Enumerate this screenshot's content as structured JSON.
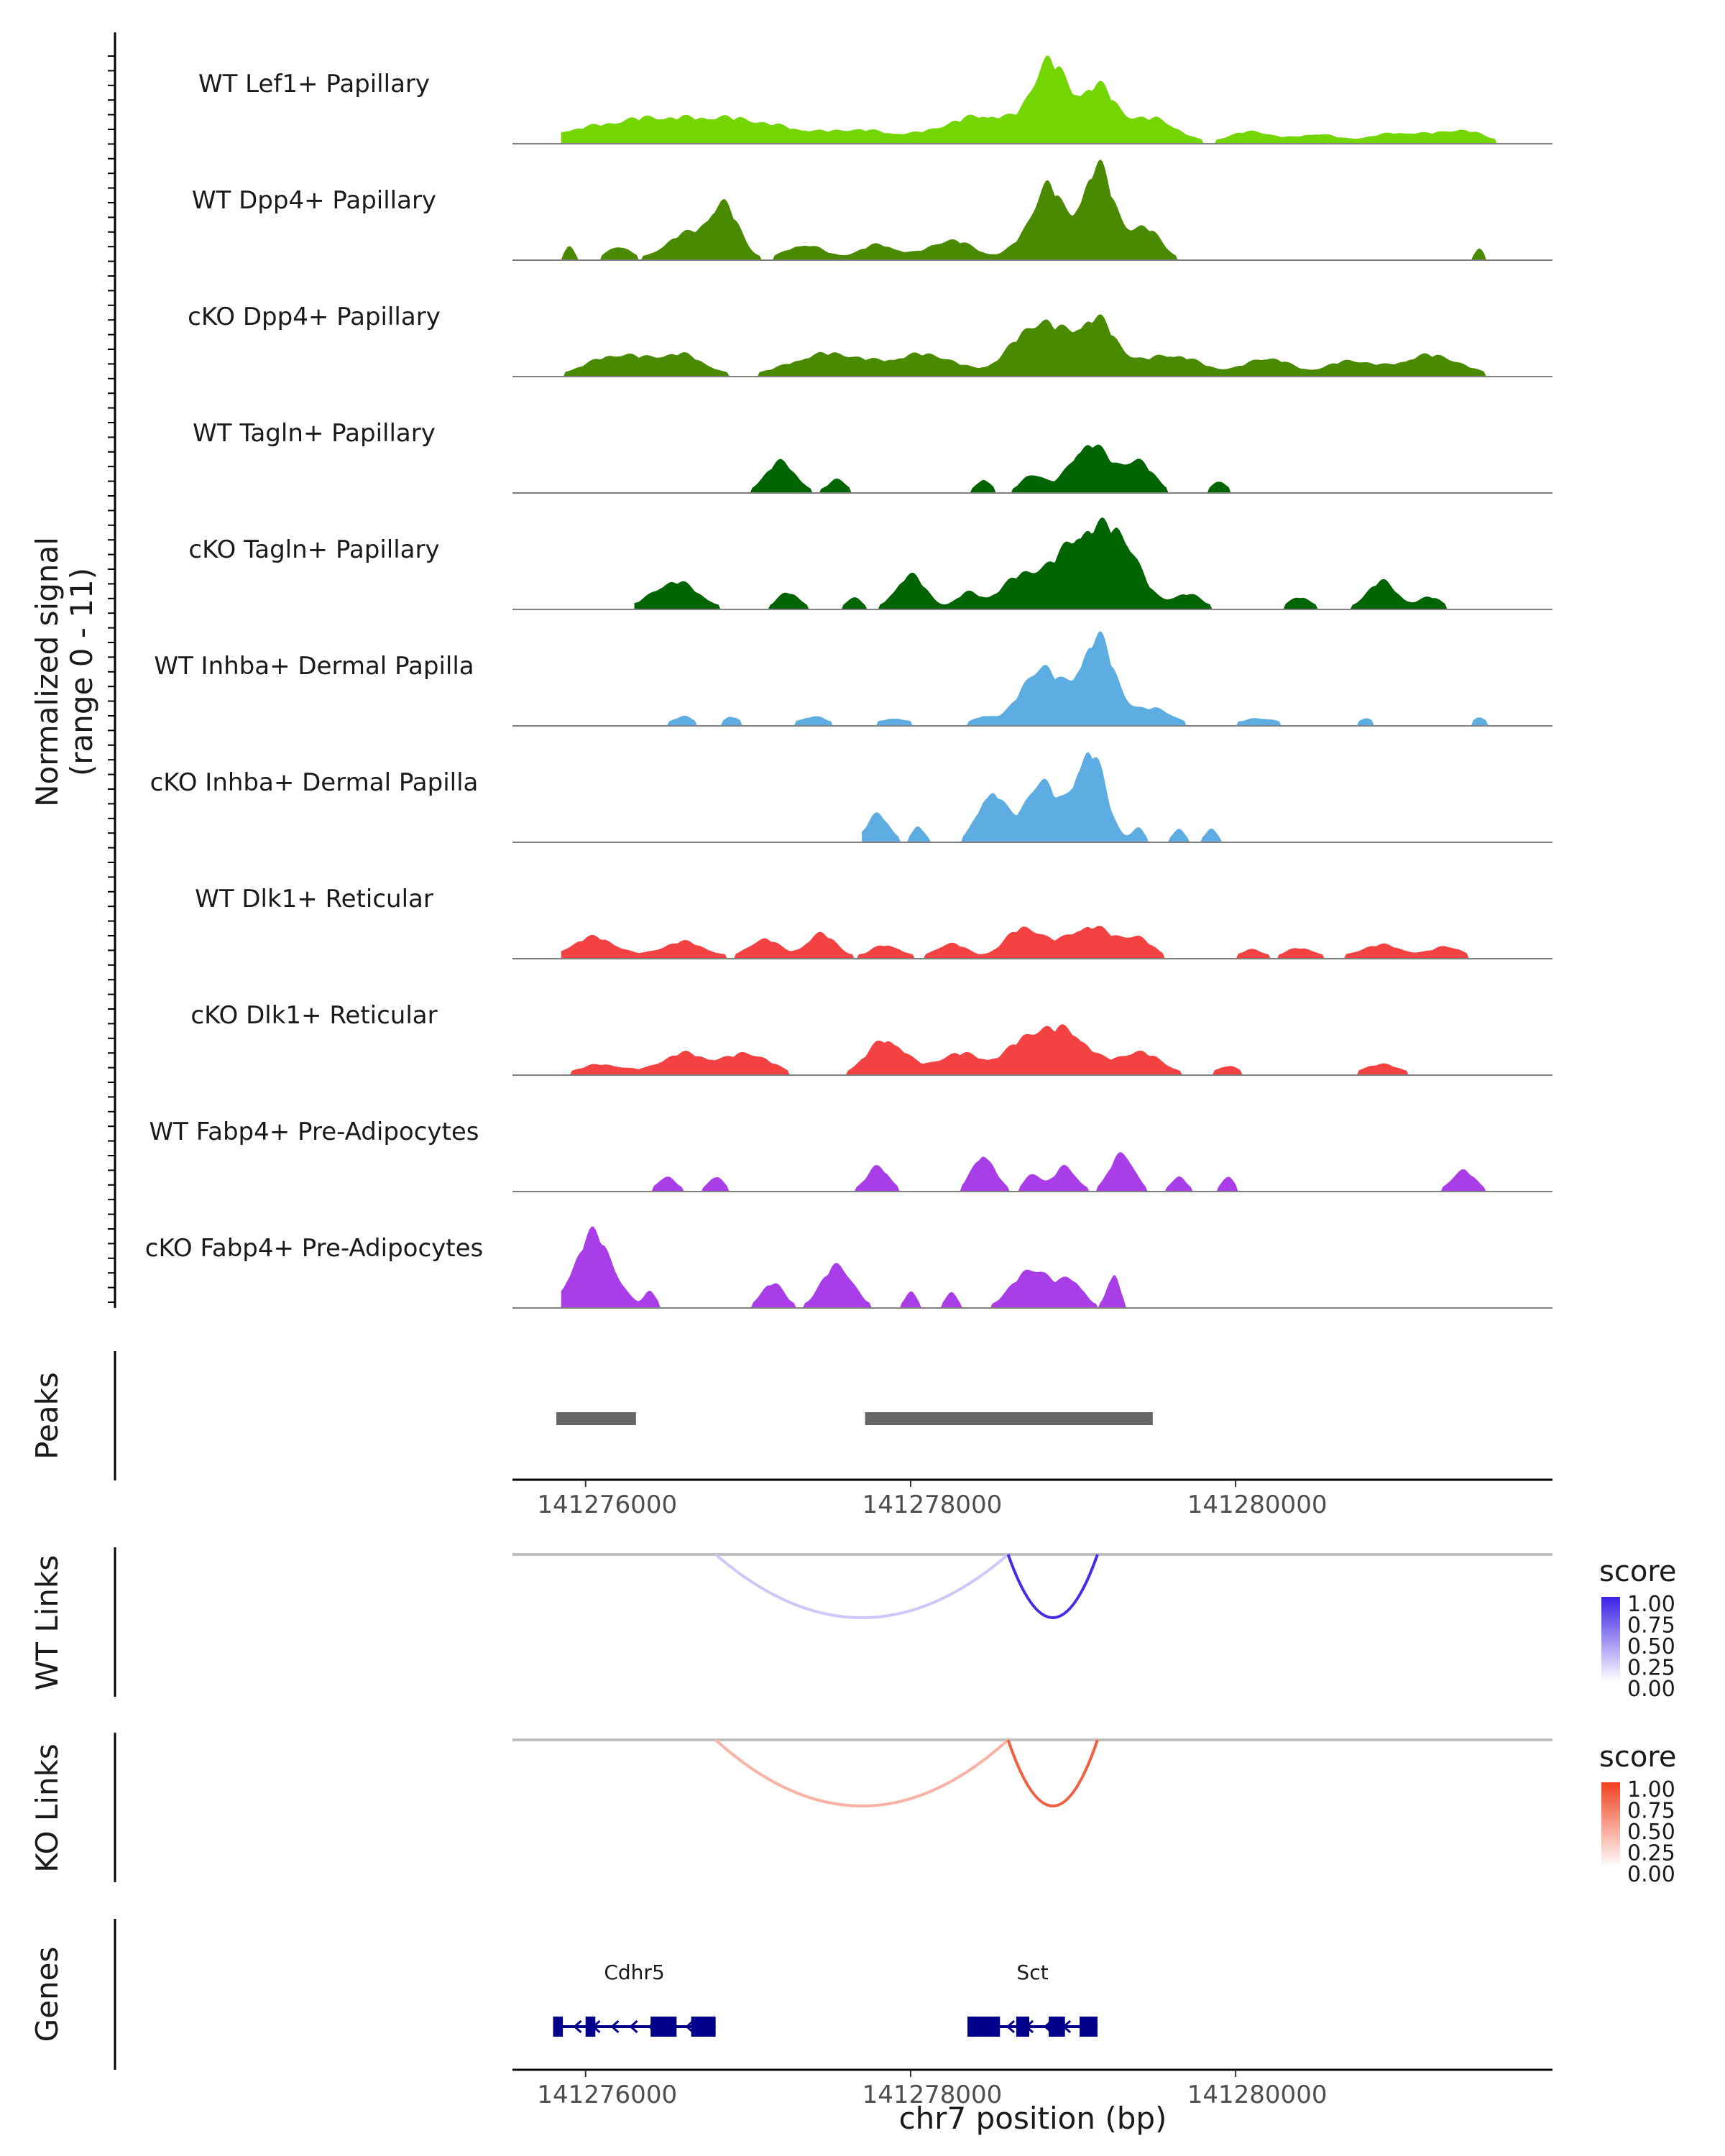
{
  "chart_data": {
    "type": "area",
    "title": "",
    "xlabel": "chr7 position (bp)",
    "ylabel": "Normalized signal (range 0 - 11)",
    "ylabel_line1": "Normalized signal",
    "ylabel_line2": "(range 0 - 11)",
    "xlim": [
      141275550,
      141281950
    ],
    "ylim": [
      0,
      11
    ],
    "x_ticks": [
      141276000,
      141278000,
      141280000
    ],
    "x_tick_labels": [
      "141276000",
      "141278000",
      "141280000"
    ],
    "tracks": [
      {
        "name": "WT Lef1+ Papillary",
        "color": "#74d600",
        "peaks": [
          [
            141276050,
            1.0,
            600
          ],
          [
            141276400,
            0.9,
            400
          ],
          [
            141276800,
            1.4,
            500
          ],
          [
            141277200,
            0.8,
            500
          ],
          [
            141277700,
            0.8,
            400
          ],
          [
            141278200,
            0.7,
            400
          ],
          [
            141278500,
            1.6,
            400
          ],
          [
            141278850,
            5.0,
            220
          ],
          [
            141279150,
            3.6,
            250
          ],
          [
            141279500,
            1.6,
            300
          ],
          [
            141280100,
            0.8,
            300
          ],
          [
            141280500,
            0.6,
            250
          ],
          [
            141281000,
            0.7,
            400
          ],
          [
            141281400,
            0.8,
            300
          ]
        ],
        "x_start": 141275850,
        "x_end": 141281650
      },
      {
        "name": "WT Dpp4+ Papillary",
        "color": "#4a8a00",
        "peaks": [
          [
            141275900,
            1.0,
            60
          ],
          [
            141276200,
            0.9,
            150
          ],
          [
            141276600,
            1.6,
            250
          ],
          [
            141276850,
            3.5,
            200
          ],
          [
            141277350,
            1.0,
            250
          ],
          [
            141277800,
            1.0,
            250
          ],
          [
            141278250,
            1.3,
            300
          ],
          [
            141278700,
            1.1,
            200
          ],
          [
            141278850,
            4.5,
            180
          ],
          [
            141279150,
            6.0,
            220
          ],
          [
            141279450,
            2.0,
            200
          ],
          [
            141281500,
            0.7,
            60
          ]
        ],
        "x_start": 141275850,
        "x_end": 141281650
      },
      {
        "name": "cKO Dpp4+ Papillary",
        "color": "#4a8a00",
        "peaks": [
          [
            141276200,
            1.4,
            400
          ],
          [
            141276600,
            1.3,
            300
          ],
          [
            141277500,
            1.5,
            500
          ],
          [
            141278100,
            1.4,
            400
          ],
          [
            141278700,
            1.6,
            300
          ],
          [
            141278850,
            2.4,
            300
          ],
          [
            141279150,
            3.4,
            250
          ],
          [
            141279600,
            1.4,
            400
          ],
          [
            141280200,
            1.2,
            300
          ],
          [
            141280700,
            1.0,
            300
          ],
          [
            141281200,
            1.4,
            400
          ]
        ],
        "x_start": 141275850,
        "x_end": 141281650
      },
      {
        "name": "WT Tagln+ Papillary",
        "color": "#006400",
        "peaks": [
          [
            141277200,
            2.0,
            200
          ],
          [
            141277550,
            0.9,
            120
          ],
          [
            141278450,
            0.9,
            100
          ],
          [
            141278750,
            1.2,
            150
          ],
          [
            141279100,
            3.2,
            250
          ],
          [
            141279400,
            2.0,
            200
          ],
          [
            141279900,
            0.8,
            100
          ]
        ],
        "x_start": 141276800,
        "x_end": 141281650
      },
      {
        "name": "cKO Tagln+ Papillary",
        "color": "#006400",
        "peaks": [
          [
            141276550,
            1.8,
            300
          ],
          [
            141277250,
            1.1,
            150
          ],
          [
            141277650,
            0.8,
            100
          ],
          [
            141278000,
            2.2,
            200
          ],
          [
            141278350,
            1.0,
            150
          ],
          [
            141278700,
            2.2,
            300
          ],
          [
            141279050,
            4.5,
            300
          ],
          [
            141279300,
            4.0,
            250
          ],
          [
            141279700,
            1.0,
            200
          ],
          [
            141280400,
            0.8,
            150
          ],
          [
            141280900,
            1.8,
            200
          ],
          [
            141281200,
            0.8,
            150
          ]
        ],
        "x_start": 141276300,
        "x_end": 141281650
      },
      {
        "name": "WT Inhba+ Dermal Papilla",
        "color": "#5dade2",
        "peaks": [
          [
            141276600,
            0.6,
            150
          ],
          [
            141276900,
            0.6,
            100
          ],
          [
            141277400,
            0.6,
            200
          ],
          [
            141277900,
            0.5,
            200
          ],
          [
            141278450,
            0.6,
            150
          ],
          [
            141278800,
            3.8,
            260
          ],
          [
            141279150,
            5.6,
            230
          ],
          [
            141279500,
            1.1,
            250
          ],
          [
            141280150,
            0.5,
            250
          ],
          [
            141280800,
            0.5,
            100
          ],
          [
            141281500,
            0.5,
            100
          ]
        ],
        "x_start": 141276500,
        "x_end": 141281650
      },
      {
        "name": "cKO Inhba+ Dermal Papilla",
        "color": "#5dade2",
        "peaks": [
          [
            141277800,
            1.8,
            150
          ],
          [
            141278050,
            1.0,
            80
          ],
          [
            141278500,
            3.3,
            180
          ],
          [
            141278800,
            4.0,
            200
          ],
          [
            141279100,
            6.0,
            200
          ],
          [
            141279400,
            0.9,
            80
          ],
          [
            141279650,
            0.9,
            80
          ],
          [
            141279850,
            0.9,
            80
          ]
        ],
        "x_start": 141277700,
        "x_end": 141281650
      },
      {
        "name": "WT Dlk1+ Reticular",
        "color": "#f44141",
        "peaks": [
          [
            141276050,
            1.4,
            300
          ],
          [
            141276600,
            1.1,
            300
          ],
          [
            141277100,
            1.3,
            200
          ],
          [
            141277450,
            1.6,
            200
          ],
          [
            141277850,
            0.9,
            200
          ],
          [
            141278250,
            1.0,
            200
          ],
          [
            141278700,
            2.0,
            250
          ],
          [
            141279100,
            2.1,
            300
          ],
          [
            141279400,
            1.2,
            200
          ],
          [
            141280100,
            0.6,
            150
          ],
          [
            141280400,
            0.7,
            200
          ],
          [
            141280900,
            0.9,
            300
          ],
          [
            141281300,
            0.8,
            200
          ]
        ],
        "x_start": 141275850,
        "x_end": 141281650
      },
      {
        "name": "cKO Dlk1+ Reticular",
        "color": "#f44141",
        "peaks": [
          [
            141276100,
            0.7,
            300
          ],
          [
            141276600,
            1.4,
            300
          ],
          [
            141277000,
            1.4,
            300
          ],
          [
            141277850,
            2.3,
            250
          ],
          [
            141278300,
            1.4,
            300
          ],
          [
            141278750,
            2.6,
            300
          ],
          [
            141279000,
            2.2,
            250
          ],
          [
            141279400,
            1.5,
            300
          ],
          [
            141279950,
            0.6,
            150
          ],
          [
            141280900,
            0.7,
            250
          ]
        ],
        "x_start": 141275850,
        "x_end": 141281650
      },
      {
        "name": "WT Fabp4+ Pre-Adipocytes",
        "color": "#a93ee8",
        "peaks": [
          [
            141276500,
            1.0,
            120
          ],
          [
            141276800,
            1.0,
            100
          ],
          [
            141277800,
            1.6,
            150
          ],
          [
            141278450,
            2.4,
            150
          ],
          [
            141278750,
            1.2,
            100
          ],
          [
            141278950,
            1.6,
            150
          ],
          [
            141279300,
            2.6,
            150
          ],
          [
            141279650,
            1.0,
            100
          ],
          [
            141279950,
            1.0,
            80
          ],
          [
            141281400,
            1.4,
            150
          ]
        ],
        "x_start": 141276300,
        "x_end": 141281650
      },
      {
        "name": "cKO Fabp4+ Pre-Adipocytes",
        "color": "#a93ee8",
        "peaks": [
          [
            141276050,
            4.8,
            250
          ],
          [
            141276400,
            1.0,
            80
          ],
          [
            141277150,
            1.6,
            150
          ],
          [
            141277550,
            2.8,
            200
          ],
          [
            141278000,
            1.0,
            80
          ],
          [
            141278250,
            1.0,
            80
          ],
          [
            141278750,
            2.6,
            250
          ],
          [
            141279000,
            1.6,
            150
          ],
          [
            141279250,
            2.2,
            80
          ]
        ],
        "x_start": 141275850,
        "x_end": 141281650
      }
    ],
    "peaks_track": {
      "label": "Peaks",
      "color": "#666666",
      "regions": [
        [
          141275820,
          141276310
        ],
        [
          141277720,
          141279490
        ]
      ]
    },
    "wt_links": {
      "label": "WT Links",
      "legend_title": "score",
      "legend_ticks": [
        "1.00",
        "0.75",
        "0.50",
        "0.25",
        "0.00"
      ],
      "low_color": "#ffffff",
      "high_color": "#3a20e6",
      "links": [
        {
          "start": 141276800,
          "end": 141278600,
          "score": 0.25
        },
        {
          "start": 141278600,
          "end": 141279150,
          "score": 0.95
        }
      ]
    },
    "ko_links": {
      "label": "KO Links",
      "legend_title": "score",
      "legend_ticks": [
        "1.00",
        "0.75",
        "0.50",
        "0.25",
        "0.00"
      ],
      "low_color": "#ffffff",
      "high_color": "#f0411e",
      "links": [
        {
          "start": 141276800,
          "end": 141278600,
          "score": 0.4
        },
        {
          "start": 141278600,
          "end": 141279150,
          "score": 0.85
        }
      ]
    },
    "genes": {
      "label": "Genes",
      "color": "#00008b",
      "items": [
        {
          "name": "Cdhr5",
          "start": 141275800,
          "end": 141276800,
          "strand": "-",
          "exons": [
            [
              141275800,
              141275860
            ],
            [
              141276000,
              141276060
            ],
            [
              141276400,
              141276560
            ],
            [
              141276650,
              141276800
            ]
          ]
        },
        {
          "name": "Sct",
          "start": 141278350,
          "end": 141279150,
          "strand": "-",
          "exons": [
            [
              141278350,
              141278550
            ],
            [
              141278650,
              141278730
            ],
            [
              141278850,
              141278950
            ],
            [
              141279040,
              141279150
            ]
          ]
        }
      ]
    }
  }
}
